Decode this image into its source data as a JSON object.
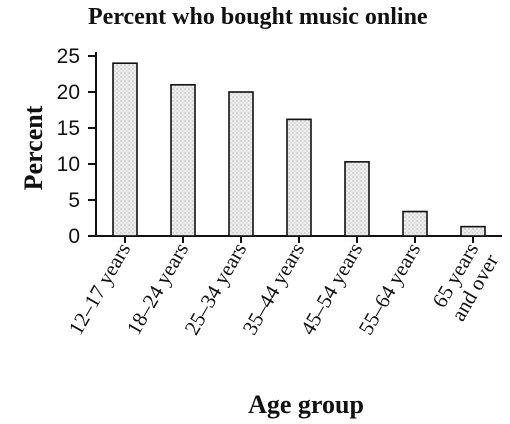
{
  "chart_data": {
    "type": "bar",
    "title": "Percent who bought music online",
    "xlabel": "Age group",
    "ylabel": "Percent",
    "categories": [
      [
        "12–17 years"
      ],
      [
        "18–24 years"
      ],
      [
        "25–34 years"
      ],
      [
        "35–44 years"
      ],
      [
        "45–54 years"
      ],
      [
        "55–64 years"
      ],
      [
        "65 years",
        "and over"
      ]
    ],
    "values": [
      24,
      21,
      20,
      16.2,
      10.3,
      3.4,
      1.3
    ],
    "ylim": [
      0,
      25
    ],
    "yticks": [
      0,
      5,
      10,
      15,
      20,
      25
    ],
    "grid": false,
    "colors": {
      "bar_fill": "#e6e6e6",
      "bar_edge": "#111111"
    }
  }
}
